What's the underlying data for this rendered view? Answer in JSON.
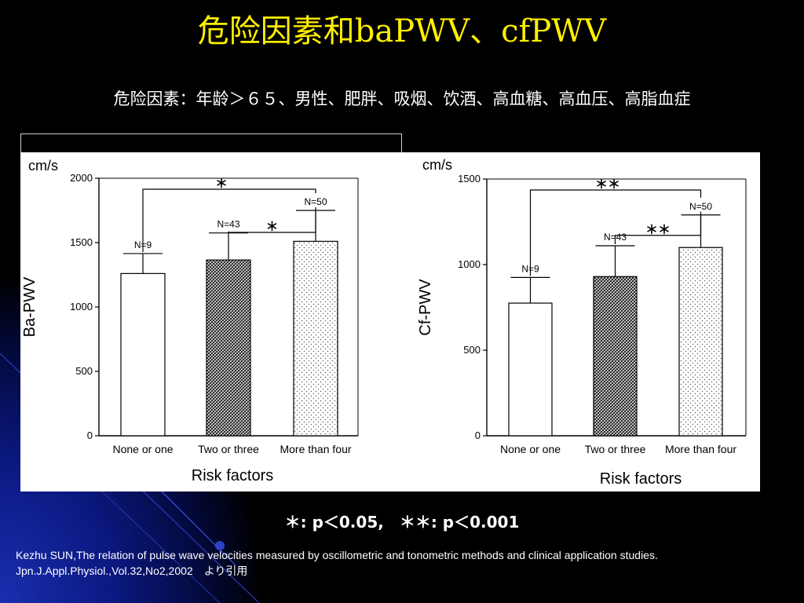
{
  "slide": {
    "title": "危险因素和baPWV、cfPWV",
    "subtitle": "危险因素：年龄＞６５、男性、肥胖、吸烟、饮酒、高血糖、高血压、高脂血症",
    "legend": "＊: p＜0.05,　＊＊: p＜0.001",
    "citation_line1": "Kezhu SUN,The relation of pulse wave velocities measured by oscillometric and tonometric methods and clinical application studies.",
    "citation_line2": "Jpn.J.Appl.Physiol.,Vol.32,No2,2002　より引用"
  },
  "chart_data": [
    {
      "type": "bar",
      "unit": "cm/s",
      "ylabel": "Ba-PWV",
      "xlabel": "Risk factors",
      "categories": [
        "None or one",
        "Two or three",
        "More than four"
      ],
      "values": [
        1260,
        1365,
        1510
      ],
      "errors": [
        155,
        210,
        240
      ],
      "n_labels": [
        "N=9",
        "N=43",
        "N=50"
      ],
      "ylim": [
        0,
        2000
      ],
      "yticks": [
        0,
        500,
        1000,
        1500,
        2000
      ],
      "significance": [
        {
          "from": 0,
          "to": 2,
          "label": "＊"
        },
        {
          "from": 1,
          "to": 2,
          "label": "＊"
        }
      ]
    },
    {
      "type": "bar",
      "unit": "cm/s",
      "ylabel": "Cf-PWV",
      "xlabel": "Risk factors",
      "categories": [
        "None or one",
        "Two or three",
        "More than four"
      ],
      "values": [
        775,
        930,
        1100
      ],
      "errors": [
        150,
        180,
        190
      ],
      "n_labels": [
        "N=9",
        "N=43",
        "N=50"
      ],
      "ylim": [
        0,
        1500
      ],
      "yticks": [
        0,
        500,
        1000,
        1500
      ],
      "significance": [
        {
          "from": 0,
          "to": 2,
          "label": "＊＊"
        },
        {
          "from": 1,
          "to": 2,
          "label": "＊＊"
        }
      ]
    }
  ],
  "colors": {
    "title": "#ffef00",
    "text": "#ffffff",
    "background": "#000000",
    "glow": "#1a2fb0"
  }
}
